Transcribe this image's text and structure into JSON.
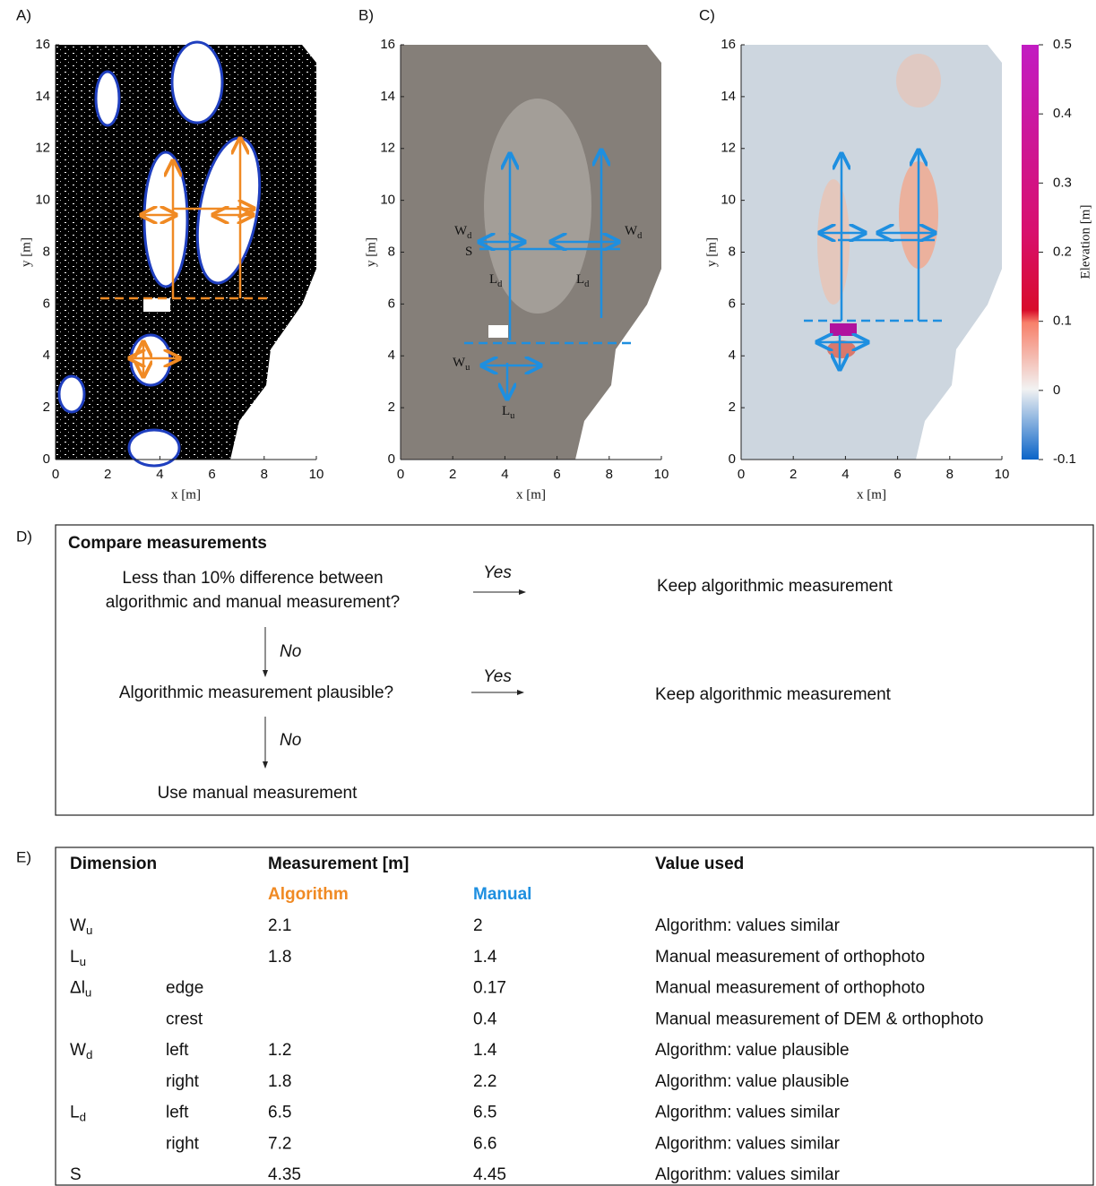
{
  "panels": {
    "labels": [
      "A)",
      "B)",
      "C)",
      "D)",
      "E)"
    ],
    "axes": {
      "xticks": [
        0,
        2,
        4,
        6,
        8,
        10
      ],
      "yticks": [
        0,
        2,
        4,
        6,
        8,
        10,
        12,
        14,
        16
      ],
      "xlabel": "x [m]",
      "ylabel": "y [m]"
    },
    "B_labels": [
      {
        "text": "W",
        "sub": "d"
      },
      {
        "text": "W",
        "sub": "d"
      },
      {
        "text": "S"
      },
      {
        "text": "L",
        "sub": "d"
      },
      {
        "text": "L",
        "sub": "d"
      },
      {
        "text": "W",
        "sub": "u"
      },
      {
        "text": "L",
        "sub": "u"
      }
    ],
    "colorbar": {
      "ticks": [
        0.5,
        0.4,
        0.3,
        0.2,
        0.1,
        0,
        -0.1
      ],
      "label": "Elevation [m]"
    }
  },
  "flowchart": {
    "title": "Compare measurements",
    "q1": [
      "Less than 10% difference between",
      "algorithmic and manual measurement?"
    ],
    "yes": "Yes",
    "no": "No",
    "keep": "Keep algorithmic measurement",
    "q2": "Algorithmic measurement plausible?",
    "manual": "Use manual measurement"
  },
  "table": {
    "headers": {
      "dimension": "Dimension",
      "measurement": "Measurement [m]",
      "used": "Value used",
      "algorithm": "Algorithm",
      "manual": "Manual"
    },
    "rows": [
      {
        "dim": {
          "text": "W",
          "sub": "u"
        },
        "algorithm": 2.1,
        "manual": 2,
        "used": "Algorithm: values similar"
      },
      {
        "dim": {
          "text": "L",
          "sub": "u"
        },
        "algorithm": 1.8,
        "manual": 1.4,
        "used": "Manual measurement of orthophoto"
      },
      {
        "dim": {
          "text": "Δl",
          "sub": "u"
        },
        "part": "edge",
        "manual": 0.17,
        "used": "Manual measurement of orthophoto"
      },
      {
        "part": "crest",
        "manual": 0.4,
        "used": "Manual measurement of DEM & orthophoto"
      },
      {
        "dim": {
          "text": "W",
          "sub": "d"
        },
        "part": "left",
        "algorithm": 1.2,
        "manual": 1.4,
        "used": "Algorithm: value plausible"
      },
      {
        "part": "right",
        "algorithm": 1.8,
        "manual": 2.2,
        "used": "Algorithm: value plausible"
      },
      {
        "dim": {
          "text": "L",
          "sub": "d"
        },
        "part": "left",
        "algorithm": 6.5,
        "manual": 6.5,
        "used": "Algorithm: values similar"
      },
      {
        "part": "right",
        "algorithm": 7.2,
        "manual": 6.6,
        "used": "Algorithm: values similar"
      },
      {
        "dim": {
          "text": "S"
        },
        "algorithm": 4.35,
        "manual": 4.45,
        "used": "Algorithm: values similar"
      }
    ]
  }
}
